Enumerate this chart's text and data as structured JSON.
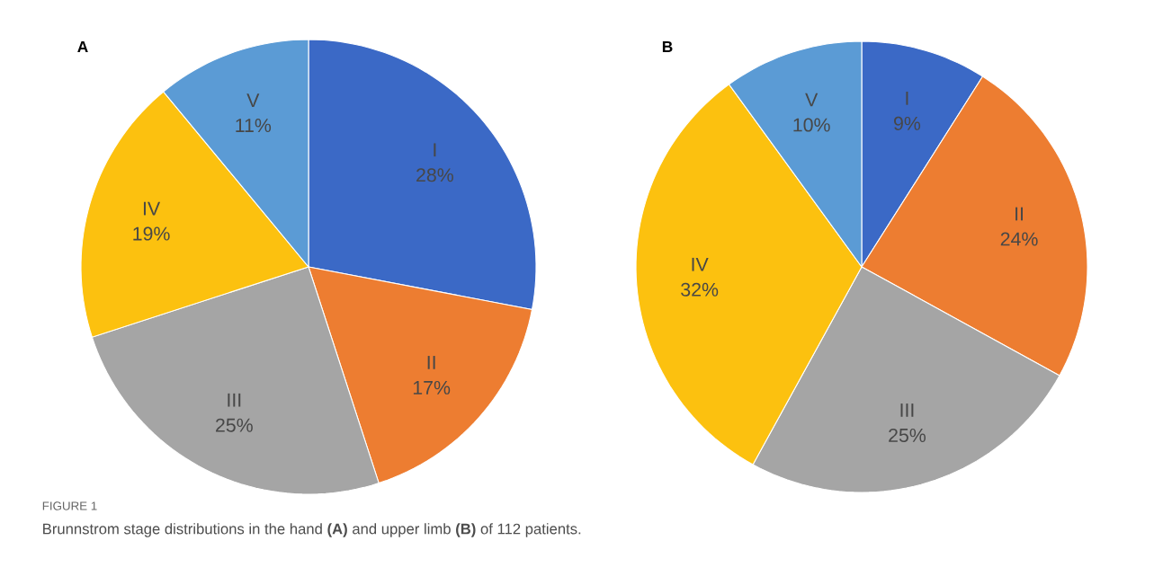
{
  "chart_data": [
    {
      "type": "pie",
      "title": "A",
      "categories": [
        "I",
        "II",
        "III",
        "IV",
        "V"
      ],
      "values": [
        28,
        17,
        25,
        19,
        11
      ],
      "value_labels": [
        "28%",
        "17%",
        "25%",
        "19%",
        "11%"
      ],
      "colors": [
        "#3b69c6",
        "#ed7d31",
        "#a5a5a5",
        "#fcc10f",
        "#5b9bd5"
      ],
      "annotations": [
        "FIGURE 1",
        "Brunnstrom stage distributions in the hand **(A)** and upper limb **(B)** of 112 patients."
      ]
    },
    {
      "type": "pie",
      "title": "B",
      "categories": [
        "I",
        "II",
        "III",
        "IV",
        "V"
      ],
      "values": [
        9,
        24,
        25,
        32,
        10
      ],
      "value_labels": [
        "9%",
        "24%",
        "25%",
        "32%",
        "10%"
      ],
      "colors": [
        "#3b69c6",
        "#ed7d31",
        "#a5a5a5",
        "#fcc10f",
        "#5b9bd5"
      ]
    }
  ]
}
